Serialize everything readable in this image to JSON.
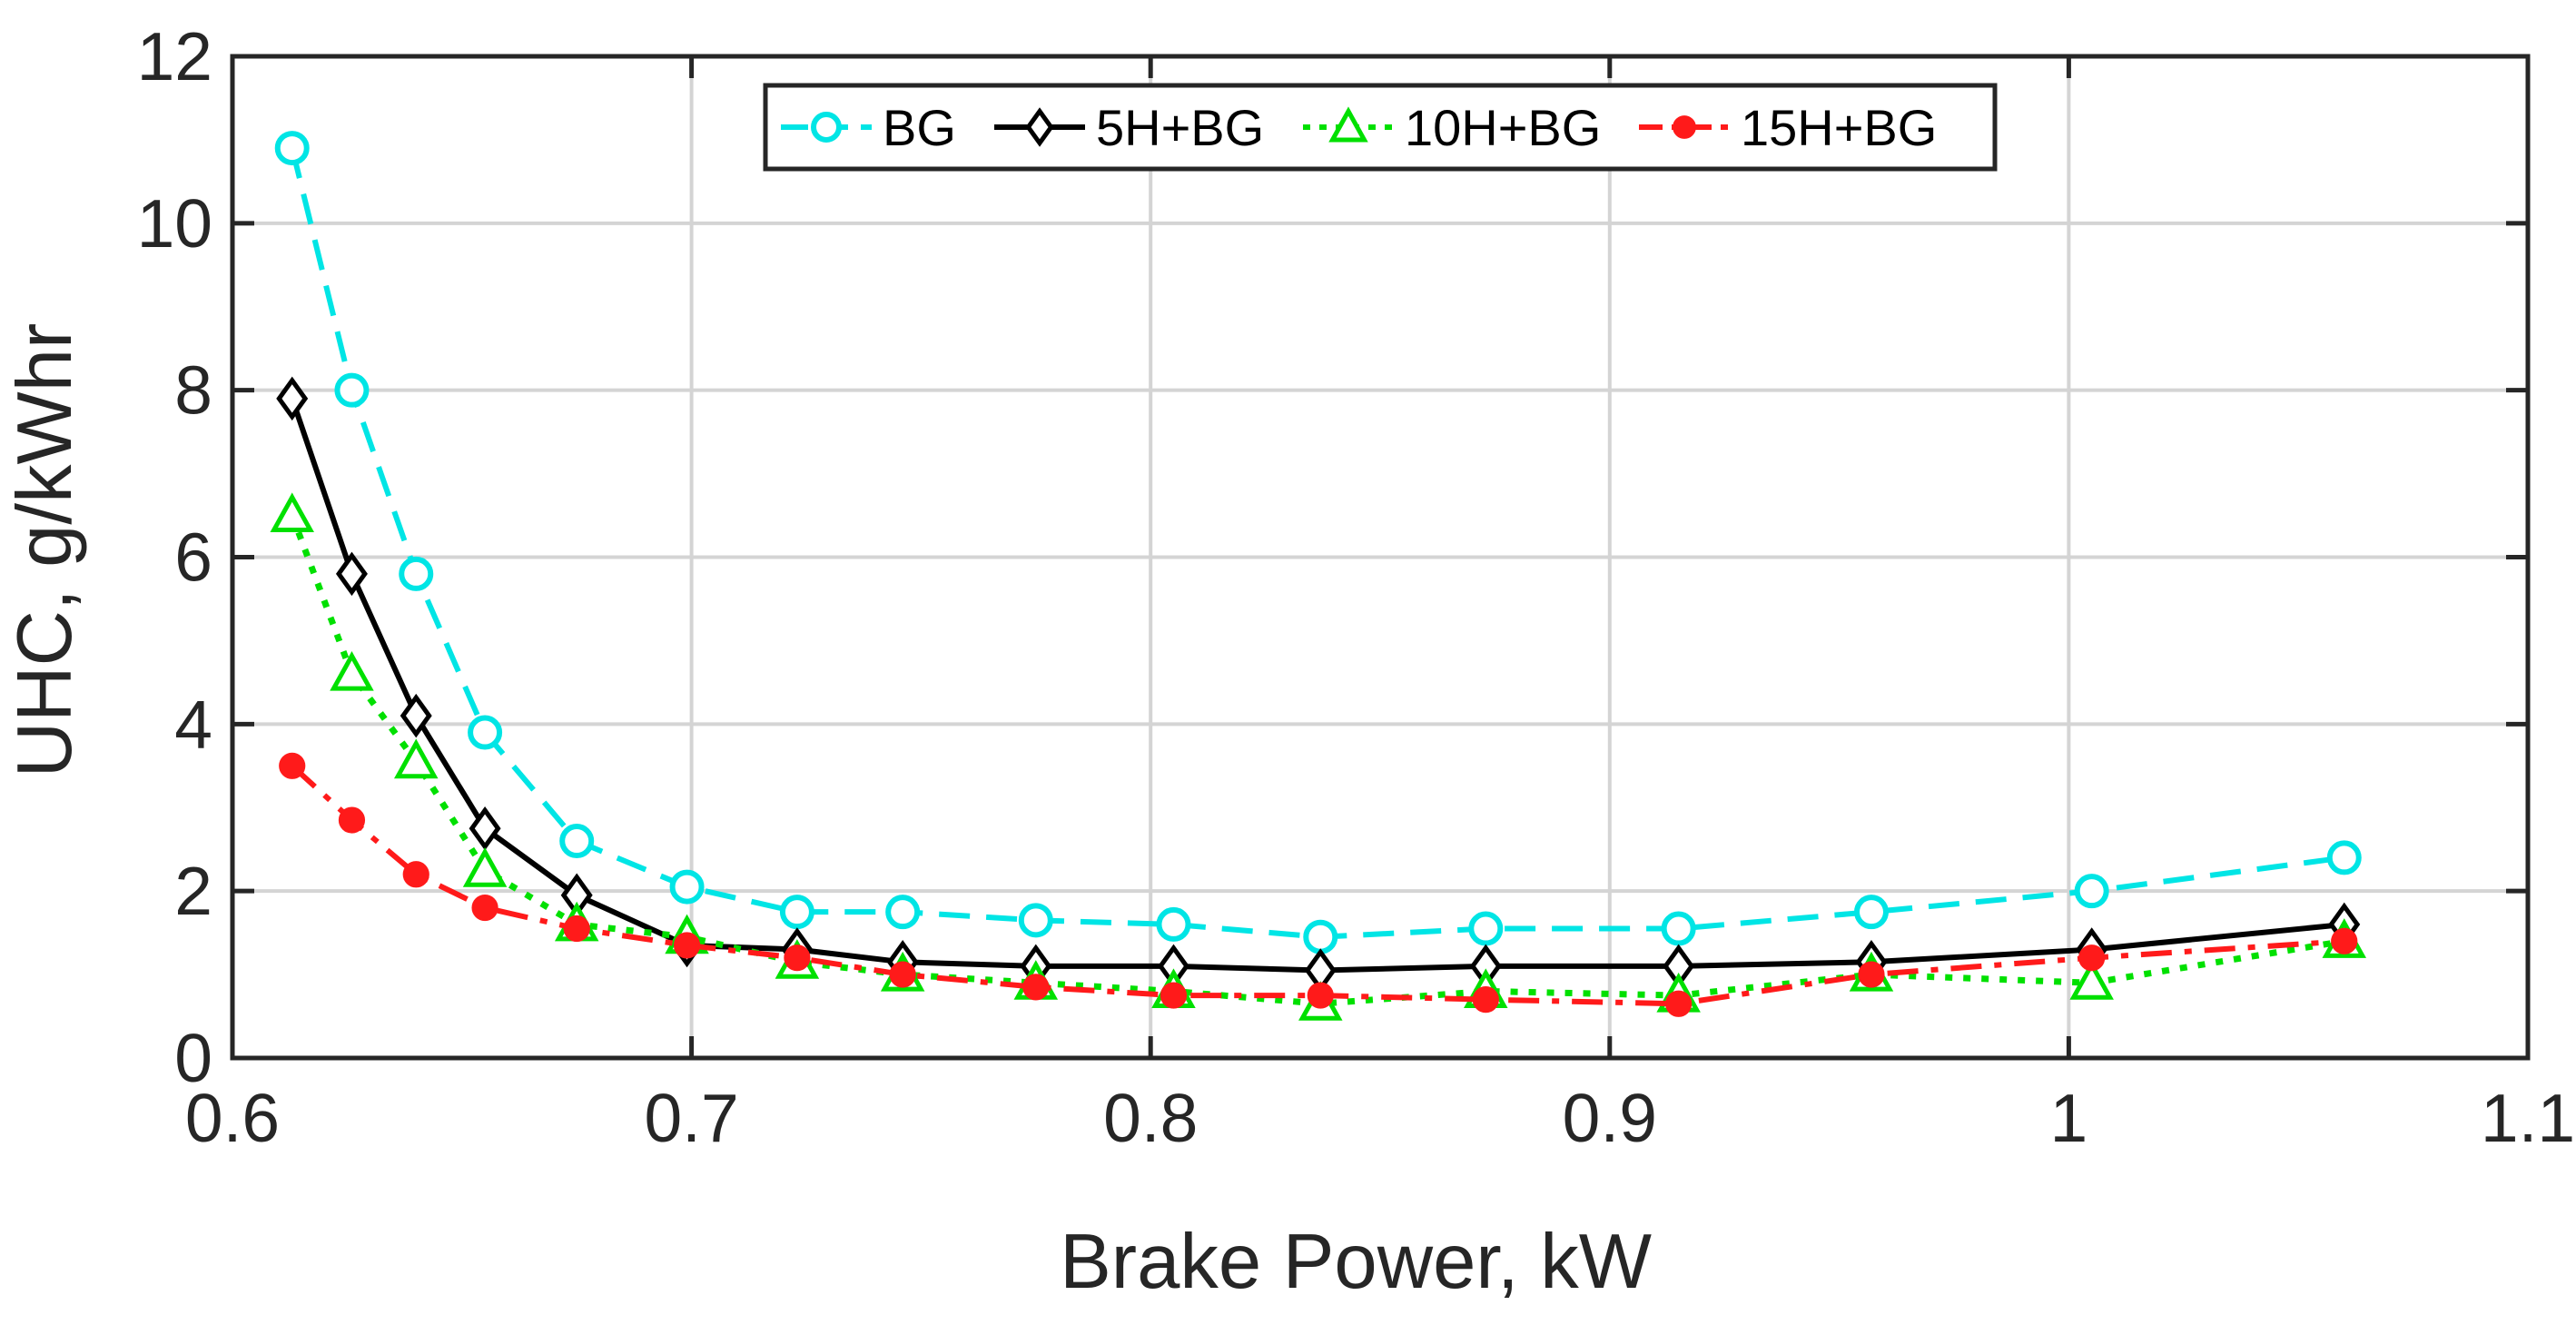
{
  "chart_data": {
    "type": "line",
    "title": "",
    "xlabel": "Brake Power, kW",
    "ylabel": "UHC, g/kWhr",
    "xlim": [
      0.6,
      1.1
    ],
    "ylim": [
      0,
      12
    ],
    "xticks": [
      0.6,
      0.7,
      0.8,
      0.9,
      1.0,
      1.1
    ],
    "xtick_labels": [
      "0.6",
      "0.7",
      "0.8",
      "0.9",
      "1",
      "1.1"
    ],
    "yticks": [
      0,
      2,
      4,
      6,
      8,
      10,
      12
    ],
    "ytick_labels": [
      "0",
      "2",
      "4",
      "6",
      "8",
      "10",
      "12"
    ],
    "grid": true,
    "legend_position": "top-center",
    "series": [
      {
        "name": "BG",
        "color": "#00e5e5",
        "line_style": "dashed",
        "marker": "circle-open",
        "x": [
          0.613,
          0.626,
          0.64,
          0.655,
          0.675,
          0.699,
          0.723,
          0.746,
          0.775,
          0.805,
          0.837,
          0.873,
          0.915,
          0.957,
          1.005,
          1.06
        ],
        "y": [
          10.9,
          8.0,
          5.8,
          3.9,
          2.6,
          2.05,
          1.75,
          1.75,
          1.65,
          1.6,
          1.45,
          1.55,
          1.55,
          1.75,
          2.0,
          2.4
        ]
      },
      {
        "name": "5H+BG",
        "color": "#000000",
        "line_style": "solid",
        "marker": "diamond-open",
        "x": [
          0.613,
          0.626,
          0.64,
          0.655,
          0.675,
          0.699,
          0.723,
          0.746,
          0.775,
          0.805,
          0.837,
          0.873,
          0.915,
          0.957,
          1.005,
          1.06
        ],
        "y": [
          7.9,
          5.8,
          4.1,
          2.75,
          1.95,
          1.35,
          1.3,
          1.15,
          1.1,
          1.1,
          1.05,
          1.1,
          1.1,
          1.15,
          1.3,
          1.6
        ]
      },
      {
        "name": "10H+BG",
        "color": "#00e000",
        "line_style": "dotted",
        "marker": "triangle-open",
        "x": [
          0.613,
          0.626,
          0.64,
          0.655,
          0.675,
          0.699,
          0.723,
          0.746,
          0.775,
          0.805,
          0.837,
          0.873,
          0.915,
          0.957,
          1.005,
          1.06
        ],
        "y": [
          6.5,
          4.6,
          3.55,
          2.25,
          1.6,
          1.45,
          1.15,
          1.0,
          0.9,
          0.8,
          0.65,
          0.8,
          0.75,
          1.0,
          0.9,
          1.4
        ]
      },
      {
        "name": "15H+BG",
        "color": "#ff1a1a",
        "line_style": "dashdot",
        "marker": "circle-filled",
        "x": [
          0.613,
          0.626,
          0.64,
          0.655,
          0.675,
          0.699,
          0.723,
          0.746,
          0.775,
          0.805,
          0.837,
          0.873,
          0.915,
          0.957,
          1.005,
          1.06
        ],
        "y": [
          3.5,
          2.85,
          2.2,
          1.8,
          1.55,
          1.35,
          1.2,
          1.0,
          0.85,
          0.75,
          0.75,
          0.7,
          0.65,
          1.0,
          1.2,
          1.4
        ]
      }
    ]
  }
}
